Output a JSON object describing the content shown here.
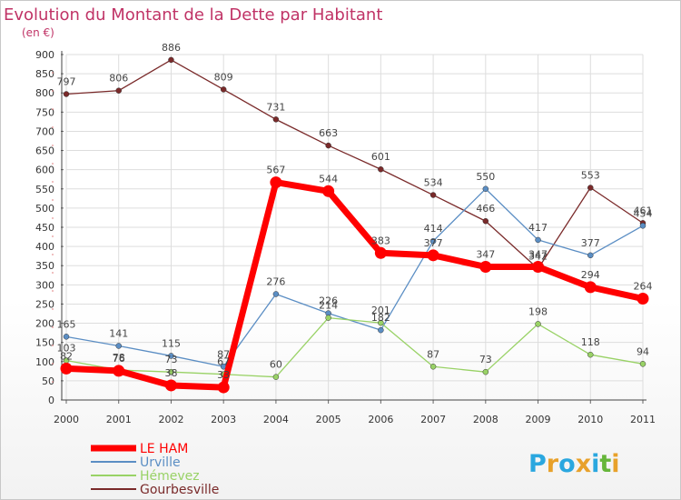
{
  "chart_data": {
    "type": "line",
    "title": "Evolution du Montant de la Dette par Habitant",
    "subtitle": "(en €)",
    "x": [
      "2000",
      "2001",
      "2002",
      "2003",
      "2004",
      "2005",
      "2006",
      "2007",
      "2008",
      "2009",
      "2010",
      "2011"
    ],
    "ylim": [
      0,
      900
    ],
    "yticks": [
      0,
      50,
      100,
      150,
      200,
      250,
      300,
      350,
      400,
      450,
      500,
      550,
      600,
      650,
      700,
      750,
      800,
      850,
      900
    ],
    "grid": true,
    "legend_position": "bottom-left",
    "series": [
      {
        "name": "Gourbesville",
        "color": "#7a2a2a",
        "values": [
          797,
          806,
          886,
          809,
          731,
          663,
          601,
          534,
          466,
          342,
          553,
          461
        ]
      },
      {
        "name": "Urville",
        "color": "#5b8ec4",
        "values": [
          165,
          141,
          115,
          87,
          276,
          226,
          182,
          414,
          550,
          417,
          377,
          454
        ]
      },
      {
        "name": "Hémevez",
        "color": "#99d266",
        "values": [
          103,
          78,
          73,
          67,
          60,
          214,
          201,
          87,
          73,
          198,
          118,
          94
        ]
      },
      {
        "name": "LE HAM",
        "color": "#ff0000",
        "values": [
          82,
          76,
          38,
          33,
          567,
          544,
          383,
          377,
          347,
          347,
          294,
          264
        ]
      }
    ]
  },
  "logo_text": "Proxiti"
}
